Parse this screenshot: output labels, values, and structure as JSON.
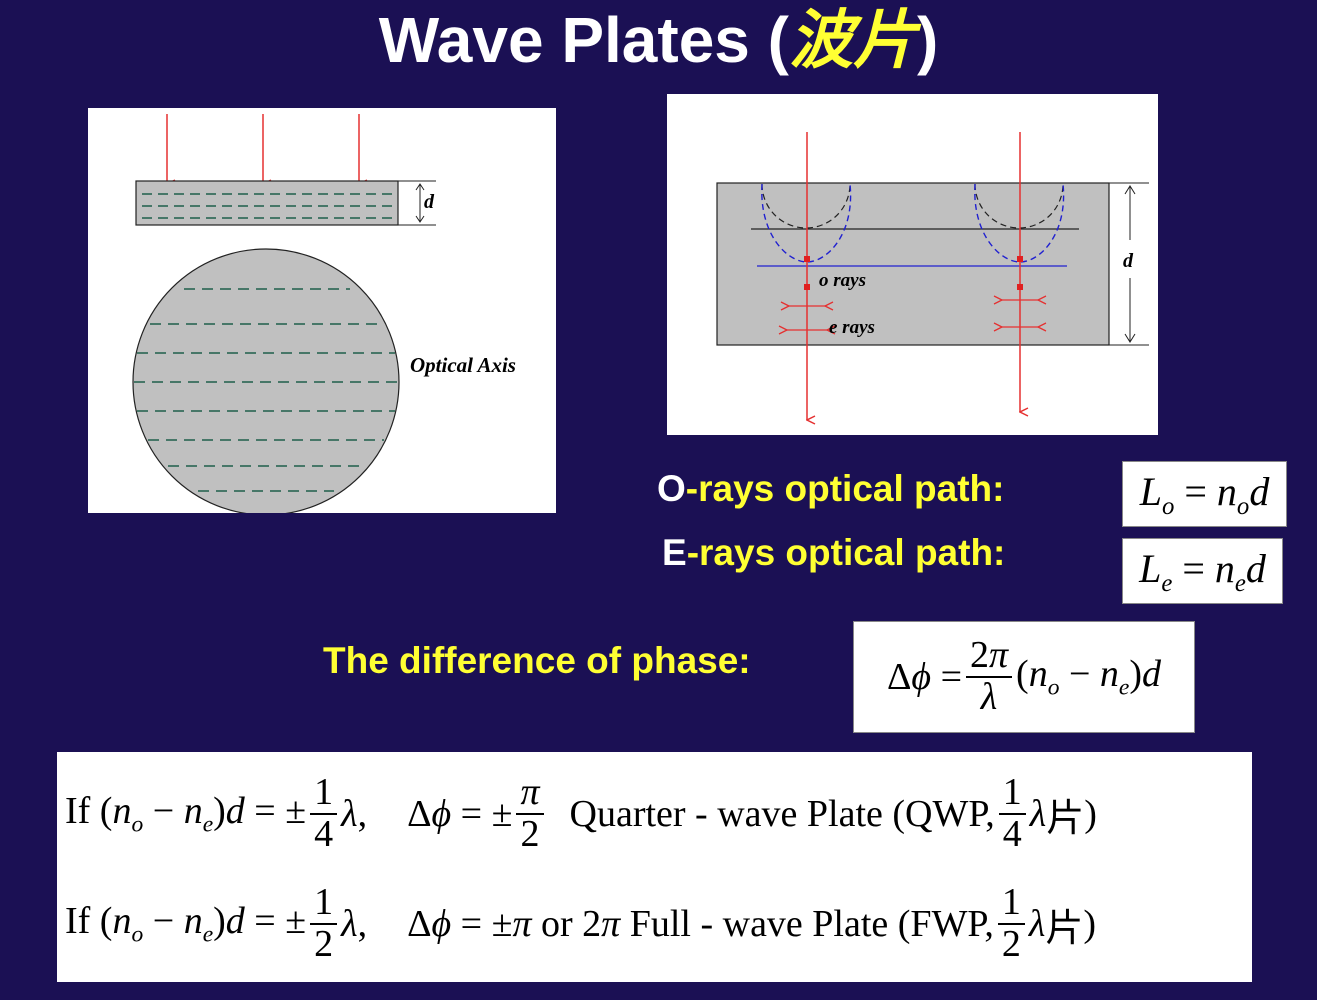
{
  "slide": {
    "title_en": "Wave Plates (",
    "title_zh": "波片",
    "title_close": ")"
  },
  "figure_left": {
    "label_d": "d",
    "label_optical_axis": "Optical Axis"
  },
  "figure_right": {
    "label_d": "d",
    "label_o_rays": "o rays",
    "label_e_rays": "e rays"
  },
  "paths": {
    "o_label_first": "O",
    "o_label_rest": "-rays optical path:",
    "e_label_first": "E",
    "e_label_rest": "-rays optical path:"
  },
  "phase": {
    "label": "The difference of phase:"
  },
  "conditions": {
    "qwp_name": "Quarter - wave Plate (QWP,",
    "fwp_name": "Full - wave Plate (FWP,",
    "or_2pi": "or",
    "pian": "片"
  },
  "colors": {
    "background": "#1b1054",
    "title": "#ffffff",
    "accent_yellow": "#ffff33",
    "ray_red": "#e53030",
    "wavefront_blue": "#2020d0",
    "plate_gray": "#c0c0c0"
  }
}
